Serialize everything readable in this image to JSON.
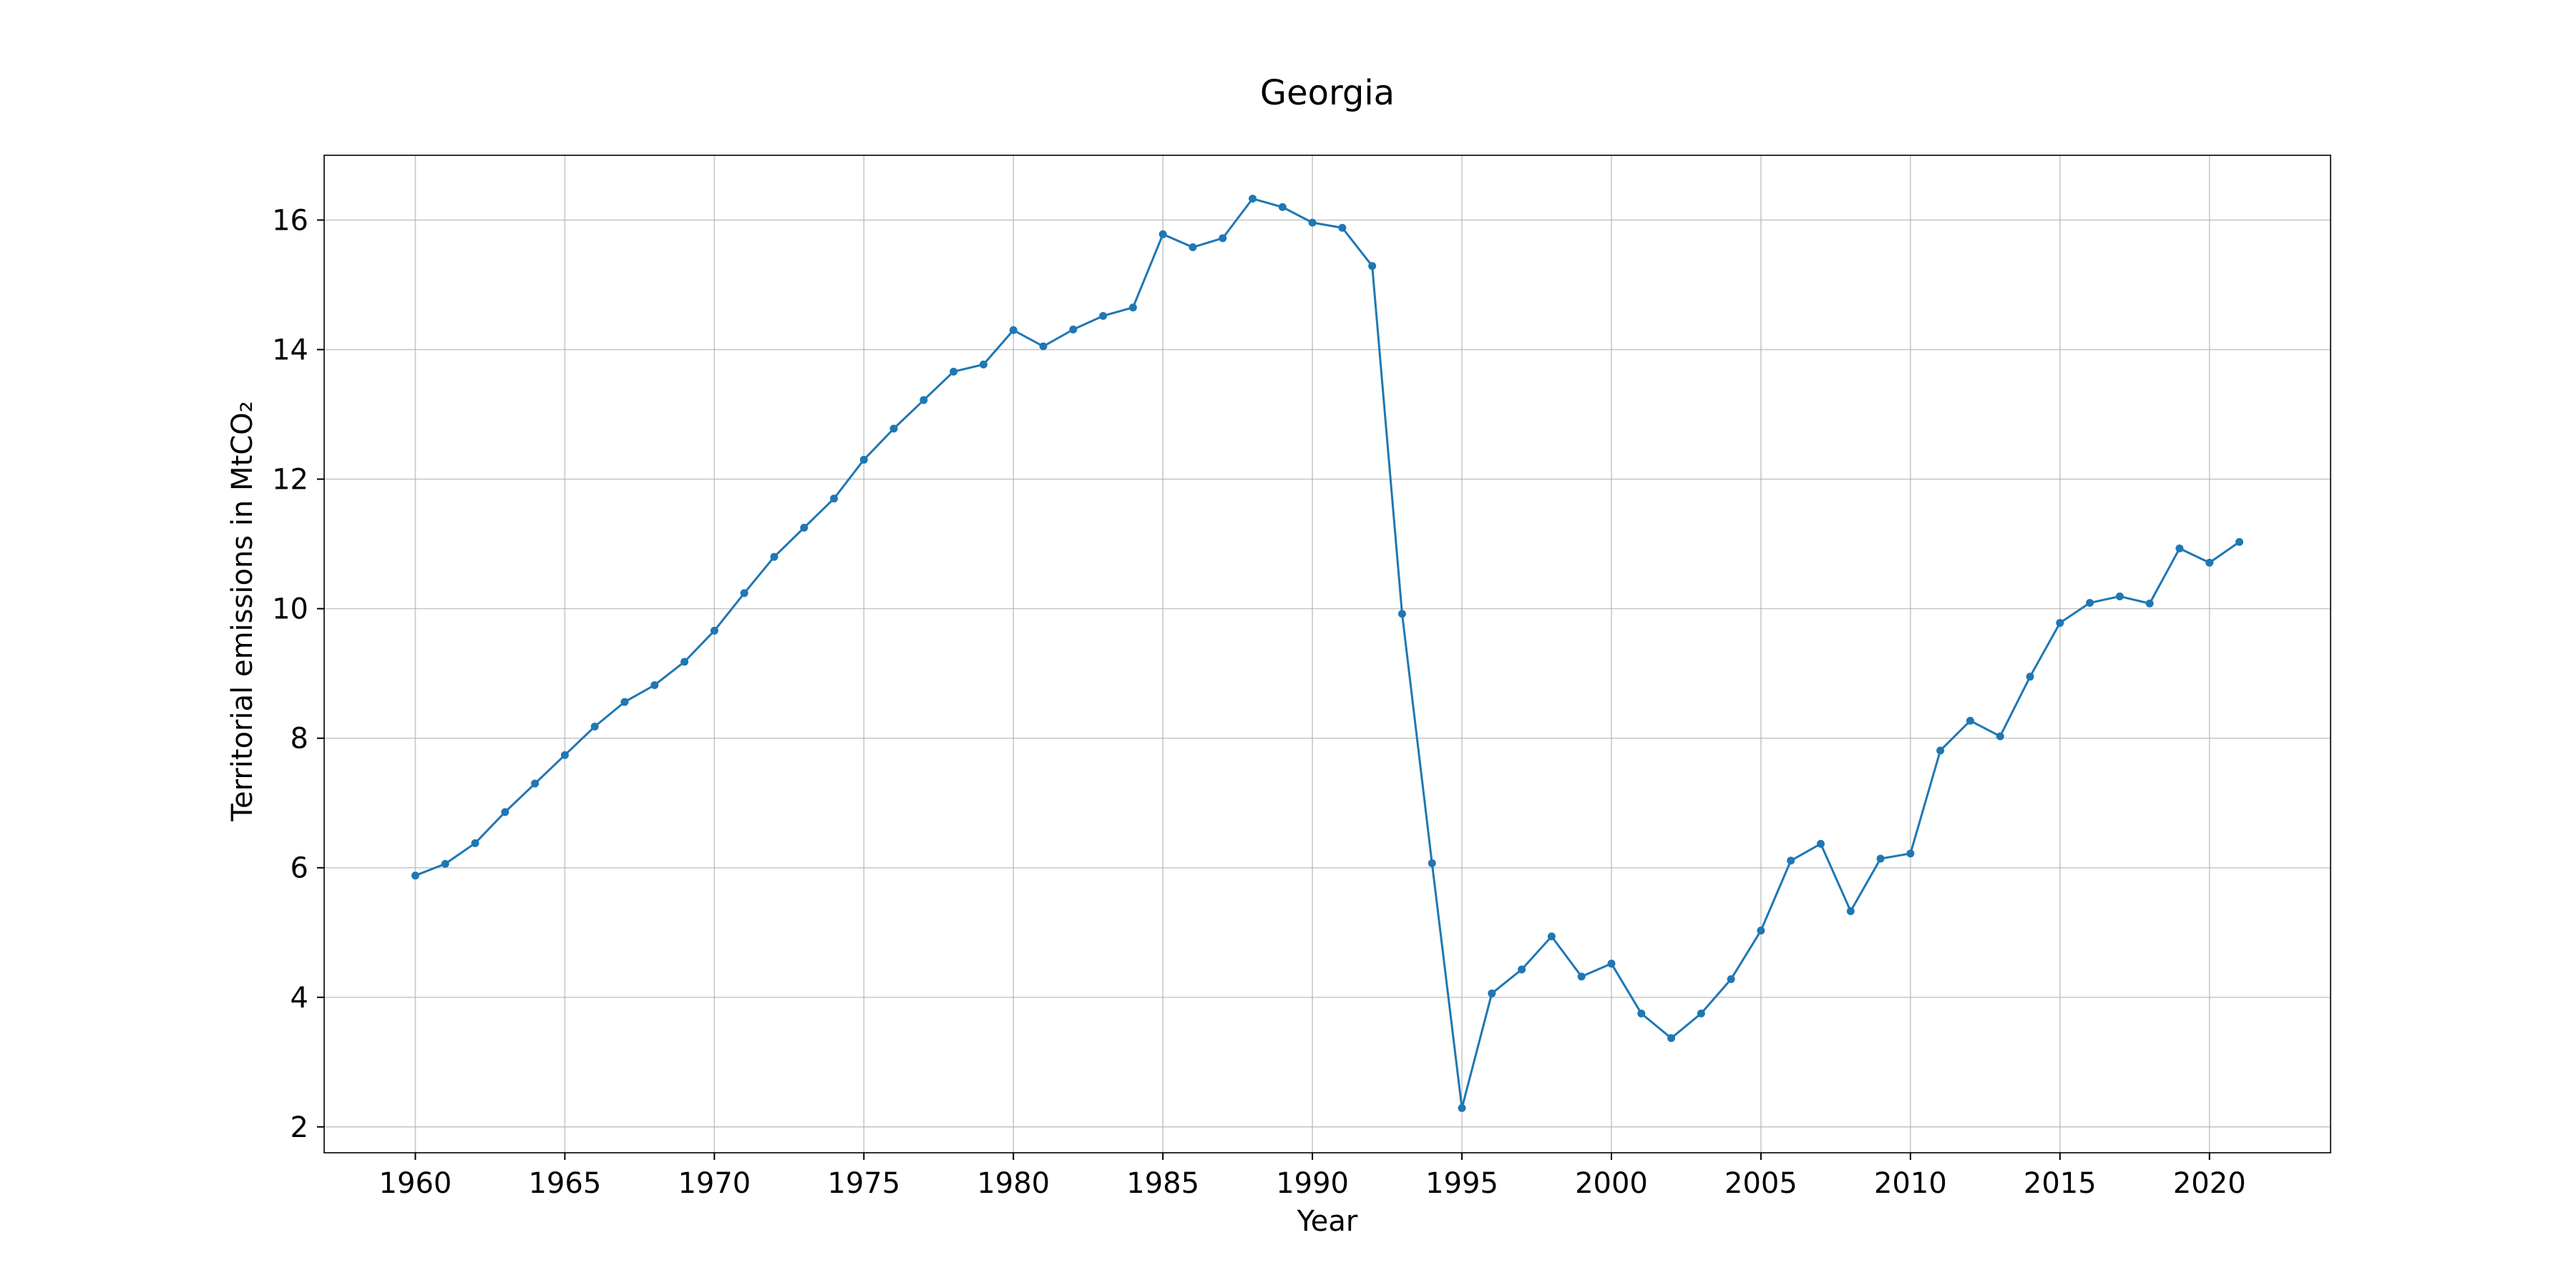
{
  "chart_data": {
    "type": "line",
    "title": "Georgia",
    "xlabel": "Year",
    "ylabel": "Territorial emissions in MtCO₂",
    "xlim": [
      1956.95,
      2024.05
    ],
    "ylim": [
      1.6,
      17.0
    ],
    "x_ticks": [
      1960,
      1965,
      1970,
      1975,
      1980,
      1985,
      1990,
      1995,
      2000,
      2005,
      2010,
      2015,
      2020
    ],
    "y_ticks": [
      2,
      4,
      6,
      8,
      10,
      12,
      14,
      16
    ],
    "grid": true,
    "line_color": "#1f77b4",
    "marker": "circle",
    "series": [
      {
        "x": [
          1960,
          1961,
          1962,
          1963,
          1964,
          1965,
          1966,
          1967,
          1968,
          1969,
          1970,
          1971,
          1972,
          1973,
          1974,
          1975,
          1976,
          1977,
          1978,
          1979,
          1980,
          1981,
          1982,
          1983,
          1984,
          1985,
          1986,
          1987,
          1988,
          1989,
          1990,
          1991,
          1992,
          1993,
          1994,
          1995,
          1996,
          1997,
          1998,
          1999,
          2000,
          2001,
          2002,
          2003,
          2004,
          2005,
          2006,
          2007,
          2008,
          2009,
          2010,
          2011,
          2012,
          2013,
          2014,
          2015,
          2016,
          2017,
          2018,
          2019,
          2020,
          2021
        ],
        "y": [
          5.88,
          6.06,
          6.38,
          6.86,
          7.3,
          7.74,
          8.18,
          8.56,
          8.82,
          9.18,
          9.66,
          10.24,
          10.8,
          11.25,
          11.7,
          12.3,
          12.78,
          13.22,
          13.66,
          13.77,
          14.3,
          14.05,
          14.31,
          14.52,
          14.65,
          15.78,
          15.58,
          15.72,
          16.33,
          16.2,
          15.96,
          15.88,
          15.29,
          9.92,
          6.07,
          2.29,
          4.06,
          4.43,
          4.94,
          4.32,
          4.52,
          3.75,
          3.37,
          3.75,
          4.28,
          5.03,
          6.11,
          6.37,
          5.33,
          6.14,
          6.22,
          7.81,
          8.27,
          8.03,
          8.95,
          9.78,
          10.09,
          10.19,
          10.08,
          10.93,
          10.71,
          11.03
        ]
      }
    ]
  }
}
